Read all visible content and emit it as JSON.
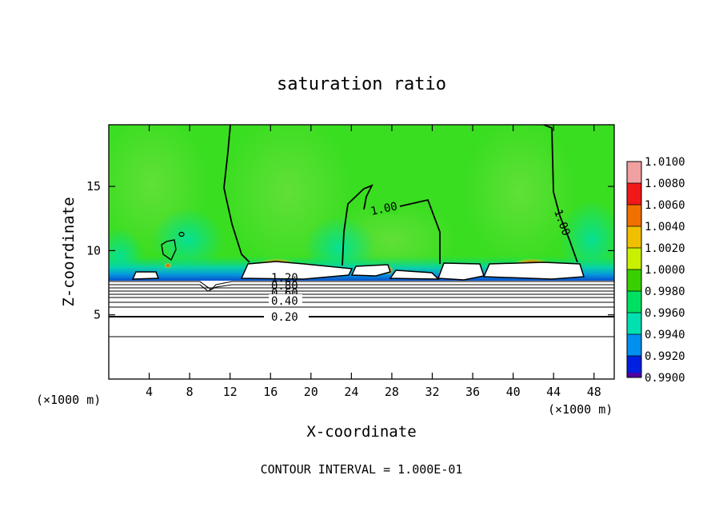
{
  "chart_data": {
    "type": "heatmap",
    "title": "saturation ratio",
    "xlabel": "X-coordinate",
    "ylabel": "Z-coordinate",
    "x_unit_left": "(×1000 m)",
    "x_unit_right": "(×1000 m)",
    "xlim": [
      0,
      50
    ],
    "ylim": [
      0,
      19.8
    ],
    "xticks": [
      "4",
      "8",
      "12",
      "16",
      "20",
      "24",
      "28",
      "32",
      "36",
      "40",
      "44",
      "48"
    ],
    "xtick_values": [
      4,
      8,
      12,
      16,
      20,
      24,
      28,
      32,
      36,
      40,
      44,
      48
    ],
    "yticks": [
      "5",
      "10",
      "15"
    ],
    "ytick_values": [
      5,
      10,
      15
    ],
    "colorbar": {
      "labels": [
        "1.0100",
        "1.0080",
        "1.0060",
        "1.0040",
        "1.0020",
        "1.0000",
        "0.9980",
        "0.9960",
        "0.9940",
        "0.9920",
        "0.9900"
      ],
      "colors": [
        "#f0a0a0",
        "#f01818",
        "#f07000",
        "#f0c000",
        "#c8f000",
        "#38d000",
        "#00e060",
        "#00e0b0",
        "#0090f0",
        "#0020e0",
        "#5000a0"
      ]
    },
    "contour_labels": [
      {
        "text": "1.00",
        "x": 26,
        "z": 13.2
      },
      {
        "text": "1.00",
        "x": 44.8,
        "z": 12.9
      },
      {
        "text": "1.20",
        "x": 17.8,
        "z": 8.2
      },
      {
        "text": "0.80",
        "x": 17.8,
        "z": 7.5
      },
      {
        "text": "0.60",
        "x": 17.8,
        "z": 6.9
      },
      {
        "text": "0.40",
        "x": 17.8,
        "z": 6.2
      },
      {
        "text": "0.20",
        "x": 17.8,
        "z": 5.0
      }
    ],
    "horizontal_contours_z": [
      3.3,
      5.0,
      5.6,
      6.2,
      6.6,
      6.9,
      7.2,
      7.5,
      7.8
    ],
    "grid": false,
    "legend": "colorbar right"
  },
  "footer": "CONTOUR INTERVAL = 1.000E-01"
}
